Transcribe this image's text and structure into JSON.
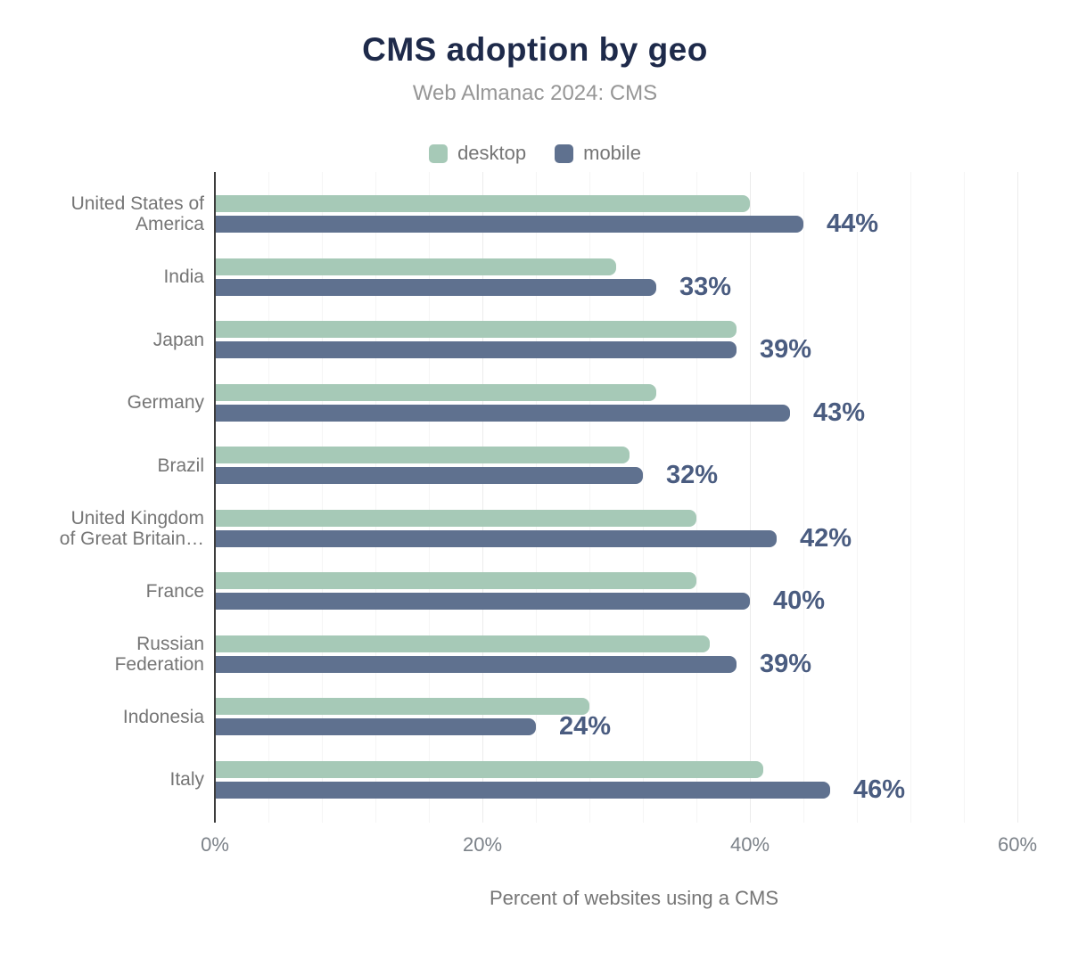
{
  "title": "CMS adoption by geo",
  "subtitle": "Web Almanac 2024: CMS",
  "colors": {
    "title": "#1e2a4a",
    "subtitle": "#969696",
    "label_gray": "#757575",
    "desktop": "#a6c9b7",
    "mobile": "#5f718f",
    "annotation": "#4a5c80",
    "axis_line": "#3d3d3d",
    "grid_minor": "#f5f5f5",
    "grid_major": "#ececec",
    "background": "#ffffff"
  },
  "legend": [
    {
      "label": "desktop",
      "series": "desktop"
    },
    {
      "label": "mobile",
      "series": "mobile"
    }
  ],
  "chart_data": {
    "type": "bar",
    "orientation": "horizontal",
    "title": "CMS adoption by geo",
    "subtitle": "Web Almanac 2024: CMS",
    "xlabel": "Percent of websites using a CMS",
    "xlim": [
      0,
      60
    ],
    "grid_minor_step": 4,
    "grid_major_step": 20,
    "grid": "vertical, light gray",
    "legend_position": "top-center",
    "x_ticks": [
      {
        "value": 0,
        "label": "0%"
      },
      {
        "value": 20,
        "label": "20%"
      },
      {
        "value": 40,
        "label": "40%"
      },
      {
        "value": 60,
        "label": "60%"
      }
    ],
    "categories": [
      "United States of America",
      "India",
      "Japan",
      "Germany",
      "Brazil",
      "United Kingdom of Great Britain…",
      "France",
      "Russian Federation",
      "Indonesia",
      "Italy"
    ],
    "categories_display": [
      "United States of\nAmerica",
      "India",
      "Japan",
      "Germany",
      "Brazil",
      "United Kingdom\nof Great Britain…",
      "France",
      "Russian\nFederation",
      "Indonesia",
      "Italy"
    ],
    "series": [
      {
        "name": "desktop",
        "values": [
          40,
          30,
          39,
          33,
          31,
          36,
          36,
          37,
          28,
          41
        ]
      },
      {
        "name": "mobile",
        "values": [
          44,
          33,
          39,
          43,
          32,
          42,
          40,
          39,
          24,
          46
        ]
      }
    ],
    "annotations": [
      "44%",
      "33%",
      "39%",
      "43%",
      "32%",
      "42%",
      "40%",
      "39%",
      "24%",
      "46%"
    ]
  }
}
